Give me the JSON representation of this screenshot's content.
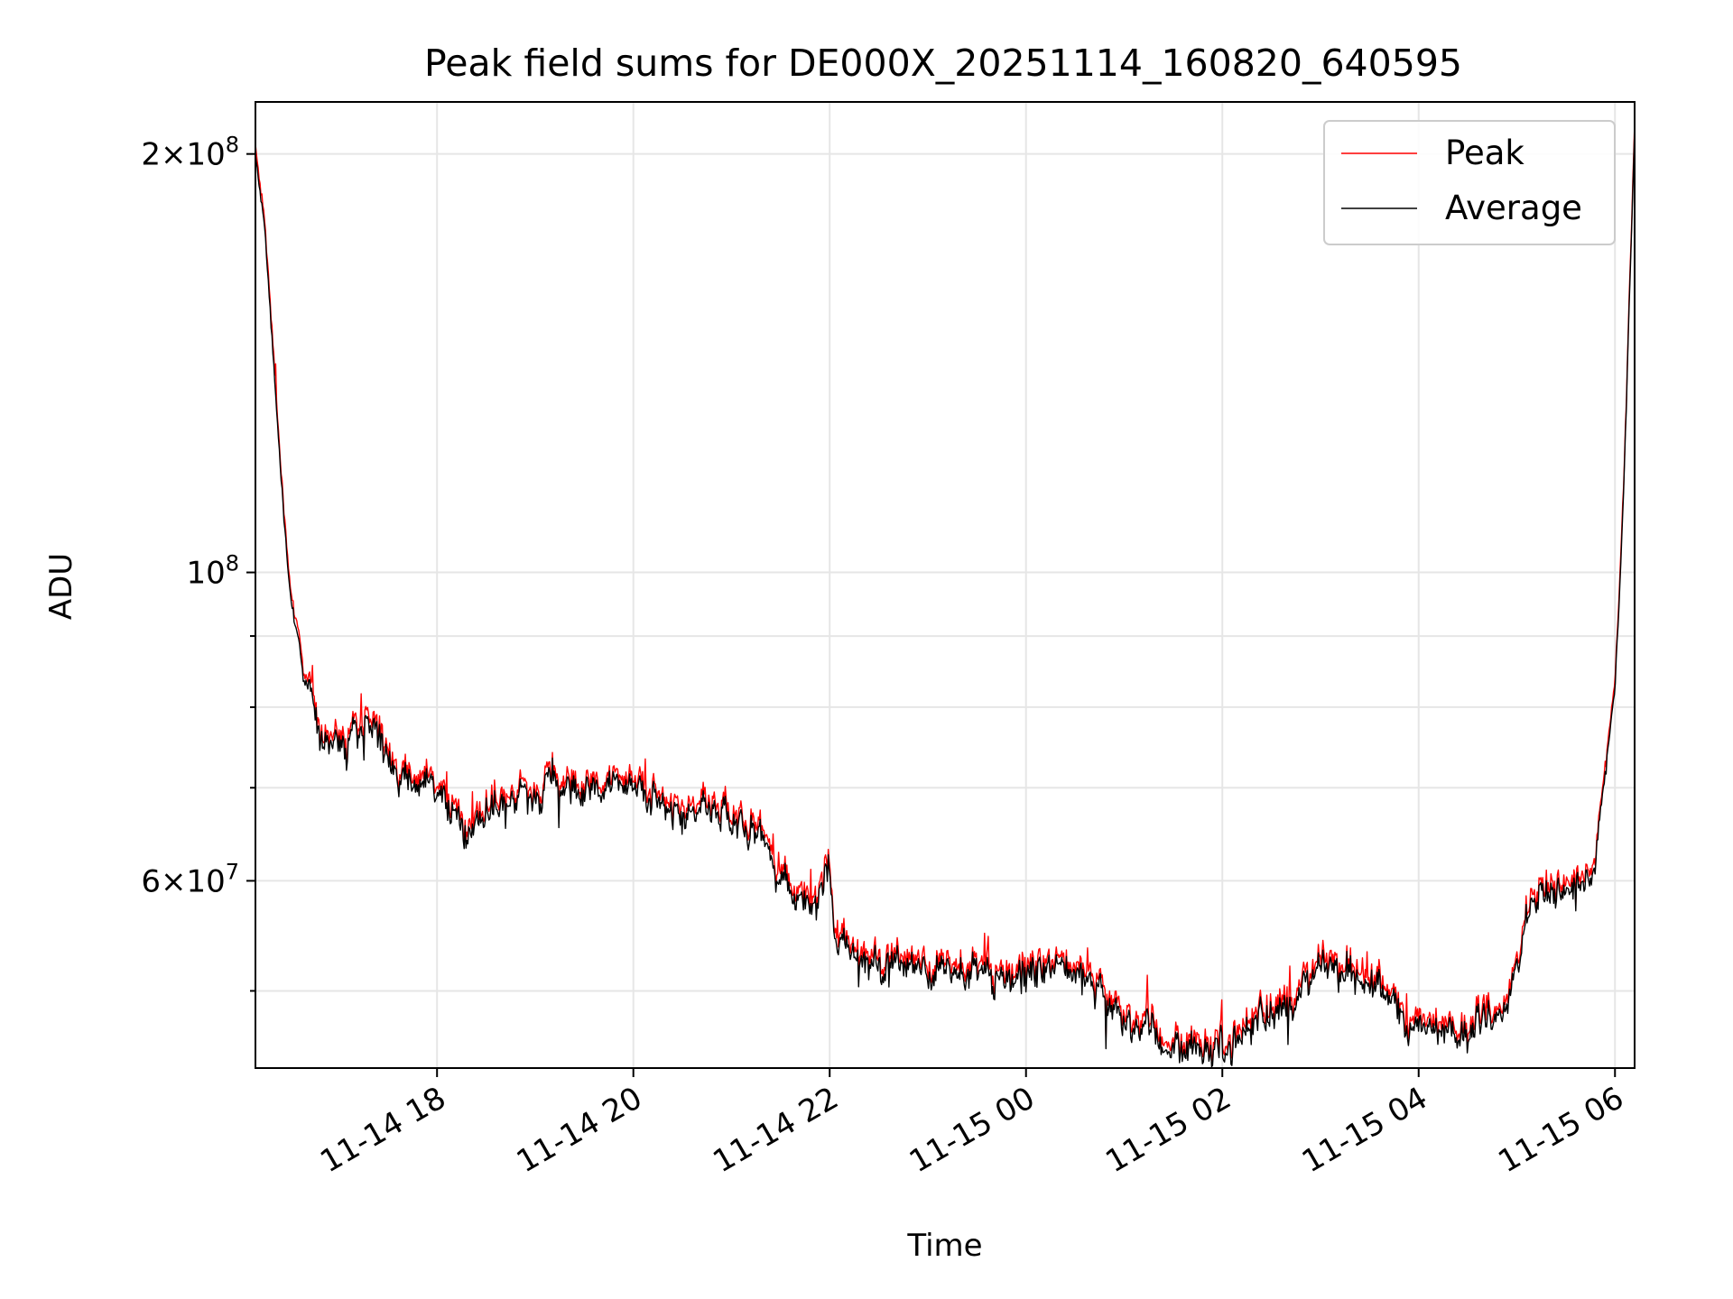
{
  "chart_data": {
    "type": "line",
    "title": "Peak field sums for DE000X_20251114_160820_640595",
    "xlabel": "Time",
    "ylabel": "ADU",
    "yscale": "log",
    "ylim": [
      44000000,
      218000000
    ],
    "xlim_hours": [
      16.15,
      30.2
    ],
    "x_unit": "hours since 2025-11-14 00:00",
    "grid": true,
    "legend_position": "upper-right",
    "legend": [
      "Peak",
      "Average"
    ],
    "x_ticks": [
      {
        "label": "11-14 18",
        "value": 18
      },
      {
        "label": "11-14 20",
        "value": 20
      },
      {
        "label": "11-14 22",
        "value": 22
      },
      {
        "label": "11-15 00",
        "value": 24
      },
      {
        "label": "11-15 02",
        "value": 26
      },
      {
        "label": "11-15 04",
        "value": 28
      },
      {
        "label": "11-15 06",
        "value": 30
      }
    ],
    "y_ticks": [
      {
        "base": "2",
        "exp": "8",
        "value": 200000000
      },
      {
        "base": "10",
        "exp": "8",
        "value": 100000000,
        "pure_power": true
      },
      {
        "base": "6",
        "exp": "7",
        "value": 60000000
      }
    ],
    "y_minor_ticks": [
      50000000,
      70000000,
      80000000,
      90000000
    ],
    "series": [
      {
        "name": "Peak",
        "color": "#ff0000",
        "offset_fraction": 0.008
      },
      {
        "name": "Average",
        "color": "#000000",
        "offset_fraction": 0.0
      }
    ],
    "trend": {
      "x": [
        16.15,
        16.25,
        16.4,
        16.5,
        16.65,
        16.8,
        17.0,
        17.2,
        17.4,
        17.65,
        17.9,
        18.1,
        18.3,
        18.6,
        18.9,
        19.2,
        19.5,
        19.8,
        20.1,
        20.4,
        20.7,
        21.0,
        21.3,
        21.5,
        21.7,
        21.9,
        22.0,
        22.05,
        22.3,
        22.5,
        22.7,
        23.0,
        23.3,
        23.6,
        23.9,
        24.2,
        24.4,
        24.6,
        24.8,
        25.0,
        25.2,
        25.4,
        25.6,
        25.85,
        26.0,
        26.2,
        26.5,
        26.8,
        27.1,
        27.3,
        27.6,
        27.9,
        28.1,
        28.3,
        28.5,
        28.8,
        29.0,
        29.2,
        29.5,
        29.75,
        29.8,
        29.9,
        30.0,
        30.05,
        30.1,
        30.15,
        30.2
      ],
      "y": [
        200000000,
        175000000,
        120000000,
        97000000,
        83000000,
        77000000,
        75500000,
        77500000,
        77000000,
        71000000,
        70500000,
        68000000,
        65000000,
        66500000,
        69000000,
        71500000,
        68500000,
        70500000,
        70000000,
        67500000,
        67000000,
        66000000,
        64000000,
        60000000,
        57500000,
        59000000,
        61000000,
        54500000,
        53000000,
        52500000,
        52000000,
        52000000,
        51500000,
        51000000,
        51500000,
        52500000,
        51500000,
        50500000,
        49500000,
        48000000,
        47000000,
        46000000,
        45500000,
        45000000,
        45500000,
        47000000,
        48500000,
        50000000,
        52000000,
        51500000,
        50000000,
        47500000,
        47000000,
        47000000,
        47500000,
        48000000,
        52000000,
        58500000,
        59500000,
        60000000,
        62000000,
        72000000,
        82000000,
        97000000,
        120000000,
        160000000,
        210000000
      ]
    },
    "noise_amplitude_fraction": 0.022
  }
}
